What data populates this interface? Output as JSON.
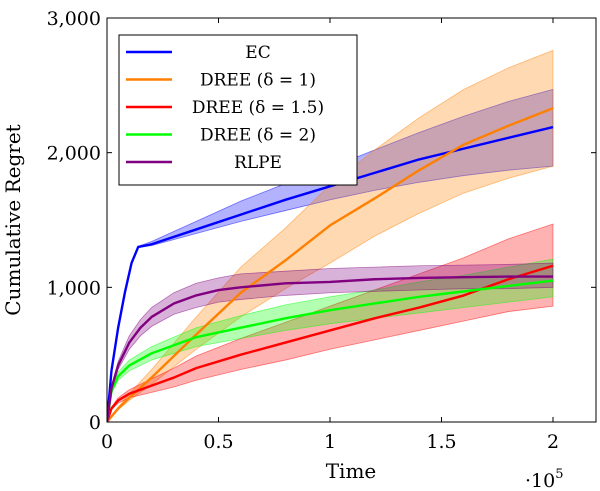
{
  "chart_data": {
    "type": "line",
    "xlabel": "Time",
    "ylabel": "Cumulative Regret",
    "x_multiplier": "·10",
    "x_multiplier_exp": "5",
    "xlim": [
      0,
      2.2
    ],
    "ylim": [
      0,
      3000
    ],
    "x_ticks": [
      0,
      0.5,
      1,
      1.5,
      2
    ],
    "x_tick_labels": [
      "0",
      "0.5",
      "1",
      "1.5",
      "2"
    ],
    "y_ticks": [
      0,
      1000,
      2000,
      3000
    ],
    "y_tick_labels": [
      "0",
      "1,000",
      "2,000",
      "3,000"
    ],
    "grid": false,
    "legend_position": "top-left",
    "series": [
      {
        "name": "EC",
        "color": "#0000ff",
        "x": [
          0,
          0.02,
          0.05,
          0.08,
          0.11,
          0.14,
          0.2,
          0.4,
          0.6,
          0.8,
          1.0,
          1.2,
          1.4,
          1.6,
          1.8,
          2.0
        ],
        "y": [
          0,
          380,
          700,
          960,
          1180,
          1300,
          1320,
          1430,
          1540,
          1650,
          1750,
          1850,
          1950,
          2030,
          2110,
          2190
        ],
        "lower": [
          0,
          370,
          690,
          950,
          1170,
          1295,
          1310,
          1400,
          1490,
          1570,
          1650,
          1720,
          1780,
          1830,
          1870,
          1900
        ],
        "upper": [
          0,
          390,
          710,
          970,
          1190,
          1305,
          1340,
          1490,
          1640,
          1770,
          1890,
          2020,
          2150,
          2270,
          2380,
          2470
        ]
      },
      {
        "name": "DREE (δ = 1)",
        "color": "#ff8000",
        "x": [
          0,
          0.05,
          0.1,
          0.2,
          0.4,
          0.6,
          0.8,
          1.0,
          1.2,
          1.4,
          1.6,
          1.8,
          2.0
        ],
        "y": [
          0,
          100,
          180,
          330,
          650,
          960,
          1200,
          1460,
          1660,
          1870,
          2060,
          2200,
          2330
        ],
        "lower": [
          0,
          90,
          160,
          280,
          540,
          780,
          990,
          1180,
          1380,
          1550,
          1700,
          1810,
          1900
        ],
        "upper": [
          0,
          110,
          210,
          390,
          780,
          1150,
          1440,
          1760,
          2020,
          2260,
          2470,
          2630,
          2760
        ]
      },
      {
        "name": "DREE (δ = 1.5)",
        "color": "#ff0000",
        "x": [
          0,
          0.02,
          0.05,
          0.1,
          0.2,
          0.3,
          0.4,
          0.6,
          0.8,
          1.0,
          1.2,
          1.4,
          1.6,
          1.8,
          2.0
        ],
        "y": [
          0,
          100,
          160,
          210,
          270,
          330,
          400,
          500,
          590,
          680,
          770,
          850,
          940,
          1060,
          1160
        ],
        "lower": [
          0,
          90,
          140,
          180,
          220,
          260,
          310,
          390,
          460,
          540,
          610,
          680,
          750,
          820,
          860
        ],
        "upper": [
          0,
          110,
          180,
          240,
          320,
          400,
          490,
          620,
          740,
          860,
          980,
          1100,
          1220,
          1360,
          1470
        ]
      },
      {
        "name": "DREE (δ = 2)",
        "color": "#00ff00",
        "x": [
          0,
          0.02,
          0.05,
          0.1,
          0.2,
          0.3,
          0.4,
          0.6,
          0.8,
          1.0,
          1.2,
          1.4,
          1.6,
          1.8,
          2.0
        ],
        "y": [
          0,
          230,
          340,
          420,
          510,
          570,
          630,
          700,
          770,
          830,
          880,
          930,
          970,
          1010,
          1050
        ],
        "lower": [
          0,
          210,
          310,
          380,
          460,
          510,
          560,
          620,
          680,
          730,
          770,
          810,
          850,
          890,
          930
        ],
        "upper": [
          0,
          250,
          370,
          460,
          560,
          630,
          700,
          790,
          870,
          930,
          980,
          1040,
          1090,
          1150,
          1210
        ]
      },
      {
        "name": "RLPE",
        "color": "#800080",
        "x": [
          0,
          0.02,
          0.05,
          0.1,
          0.15,
          0.2,
          0.3,
          0.4,
          0.5,
          0.6,
          0.8,
          1.0,
          1.2,
          1.4,
          1.6,
          1.8,
          2.0
        ],
        "y": [
          0,
          250,
          420,
          590,
          700,
          780,
          880,
          940,
          980,
          1000,
          1030,
          1040,
          1060,
          1070,
          1075,
          1080,
          1080
        ],
        "lower": [
          0,
          230,
          390,
          540,
          640,
          710,
          800,
          850,
          890,
          910,
          940,
          960,
          970,
          980,
          990,
          990,
          1000
        ],
        "upper": [
          0,
          270,
          450,
          640,
          760,
          850,
          960,
          1030,
          1070,
          1100,
          1120,
          1140,
          1150,
          1160,
          1165,
          1170,
          1180
        ]
      }
    ]
  }
}
